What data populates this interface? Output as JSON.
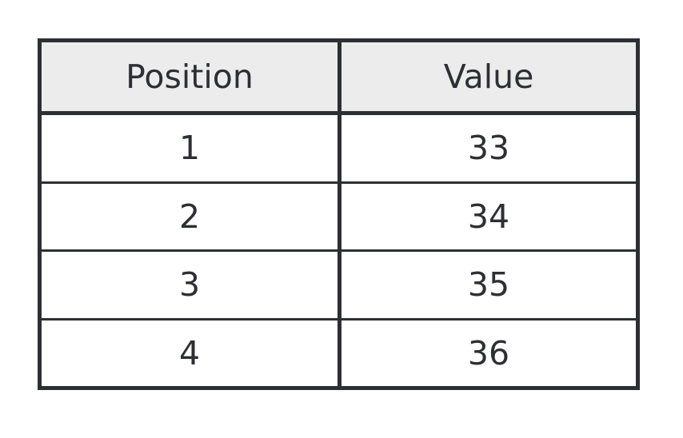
{
  "table": {
    "headers": [
      "Position",
      "Value"
    ],
    "rows": [
      [
        "1",
        "33"
      ],
      [
        "2",
        "34"
      ],
      [
        "3",
        "35"
      ],
      [
        "4",
        "36"
      ]
    ]
  }
}
